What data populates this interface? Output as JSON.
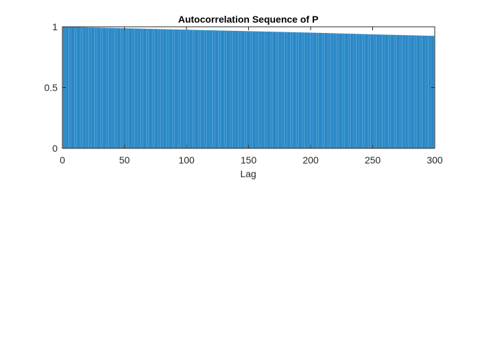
{
  "chart_data": {
    "type": "bar",
    "title": "Autocorrelation Sequence of P",
    "xlabel": "Lag",
    "ylabel": "",
    "xlim": [
      0,
      300
    ],
    "ylim": [
      0,
      1
    ],
    "xticks": [
      0,
      50,
      100,
      150,
      200,
      250,
      300
    ],
    "xtick_labels": [
      "0",
      "50",
      "100",
      "150",
      "200",
      "250",
      "300"
    ],
    "yticks": [
      0,
      0.5,
      1
    ],
    "ytick_labels": [
      "0",
      "0.5",
      "1"
    ],
    "grid": false,
    "lag_start": 0,
    "lag_end": 300,
    "lag_step": 1,
    "value_anchors": [
      {
        "lag": 0,
        "value": 1.0
      },
      {
        "lag": 50,
        "value": 0.988
      },
      {
        "lag": 100,
        "value": 0.976
      },
      {
        "lag": 150,
        "value": 0.964
      },
      {
        "lag": 200,
        "value": 0.952
      },
      {
        "lag": 250,
        "value": 0.938
      },
      {
        "lag": 300,
        "value": 0.925
      }
    ],
    "bar_color": "#0072BD"
  }
}
